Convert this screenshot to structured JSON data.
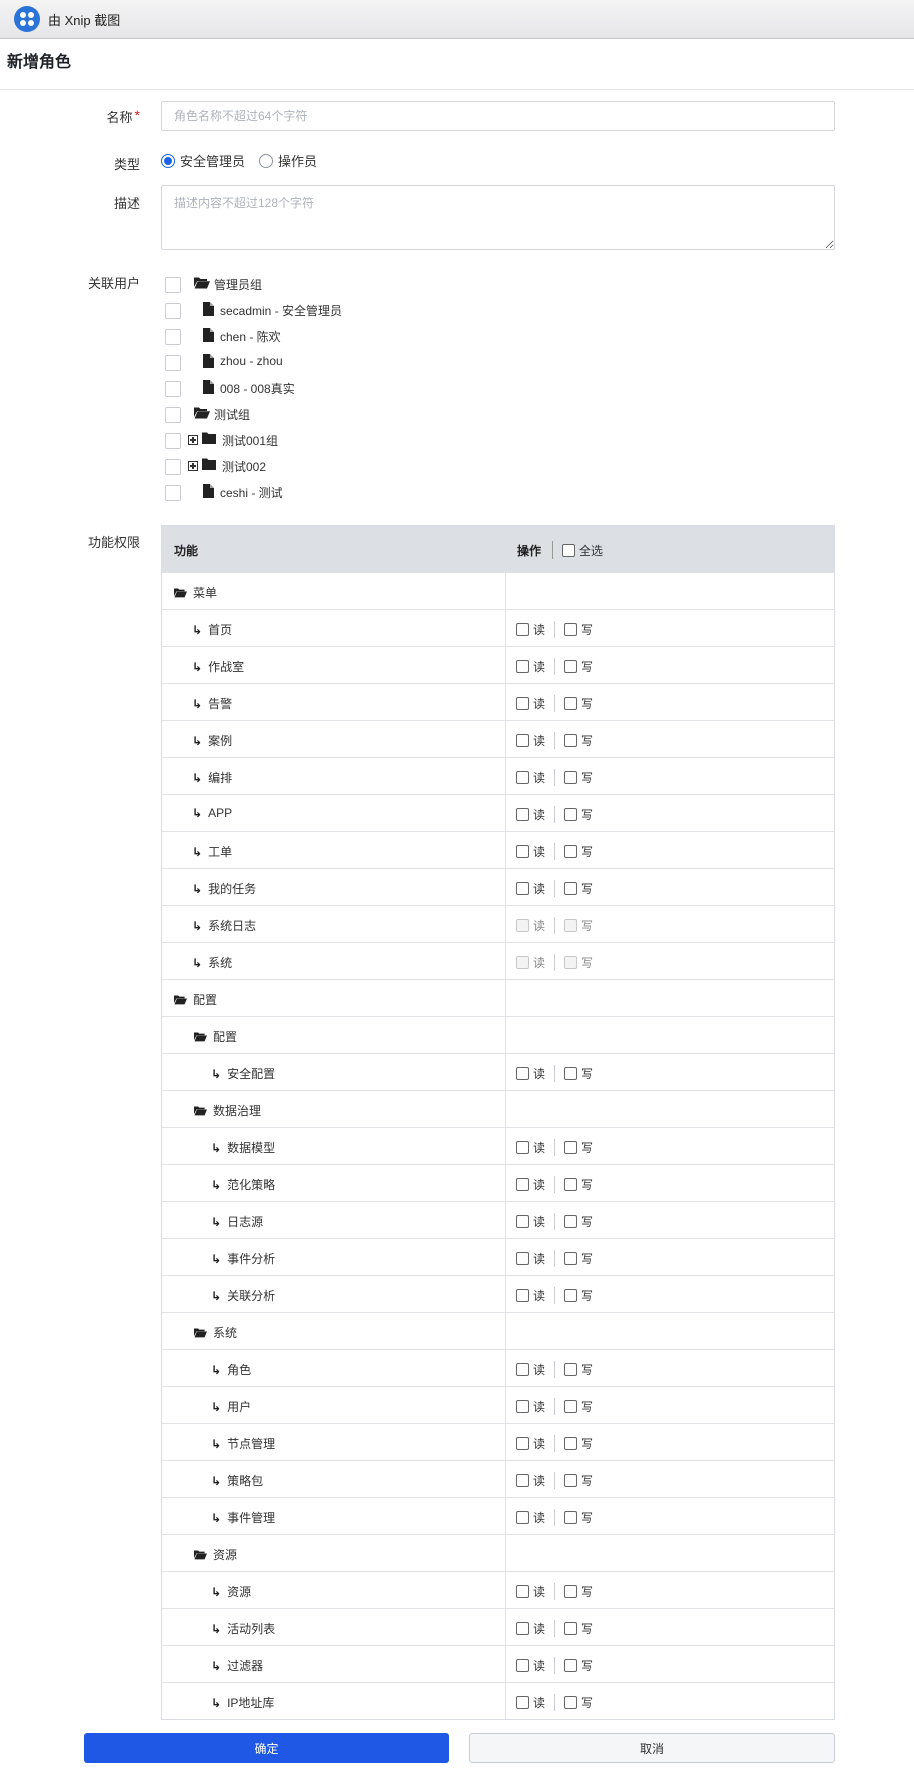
{
  "window": {
    "title": "由 Xnip 截图"
  },
  "page": {
    "title": "新增角色"
  },
  "form": {
    "name_label": "名称",
    "required_mark": "*",
    "name_placeholder": "角色名称不超过64个字符",
    "type_label": "类型",
    "type_options": [
      "安全管理员",
      "操作员"
    ],
    "type_selected": "安全管理员",
    "desc_label": "描述",
    "desc_placeholder": "描述内容不超过128个字符",
    "users_label": "关联用户",
    "perm_label": "功能权限"
  },
  "user_tree": [
    {
      "text": "管理员组",
      "icon": "folder-open-icon"
    },
    {
      "text": "secadmin - 安全管理员",
      "icon": "file-icon"
    },
    {
      "text": "chen - 陈欢",
      "icon": "file-icon"
    },
    {
      "text": "zhou - zhou",
      "icon": "file-icon"
    },
    {
      "text": "008 - 008真实",
      "icon": "file-icon"
    },
    {
      "text": "测试组",
      "icon": "folder-open-icon"
    },
    {
      "text": "测试001组",
      "icon": "folder-closed-icon",
      "expander": true
    },
    {
      "text": "测试002",
      "icon": "folder-closed-icon",
      "expander": true
    },
    {
      "text": "ceshi - 测试",
      "icon": "file-icon"
    }
  ],
  "perm_table": {
    "col_function": "功能",
    "col_operation": "操作",
    "select_all": "全选",
    "read_label": "读",
    "write_label": "写",
    "rows": [
      {
        "name": "菜单",
        "kind": "group",
        "level": 0
      },
      {
        "name": "首页",
        "kind": "item",
        "level": 1
      },
      {
        "name": "作战室",
        "kind": "item",
        "level": 1
      },
      {
        "name": "告警",
        "kind": "item",
        "level": 1
      },
      {
        "name": "案例",
        "kind": "item",
        "level": 1
      },
      {
        "name": "编排",
        "kind": "item",
        "level": 1
      },
      {
        "name": "APP",
        "kind": "item",
        "level": 1
      },
      {
        "name": "工单",
        "kind": "item",
        "level": 1
      },
      {
        "name": "我的任务",
        "kind": "item",
        "level": 1
      },
      {
        "name": "系统日志",
        "kind": "item",
        "level": 1,
        "disabled": true
      },
      {
        "name": "系统",
        "kind": "item",
        "level": 1,
        "disabled": true
      },
      {
        "name": "配置",
        "kind": "group",
        "level": 0
      },
      {
        "name": "配置",
        "kind": "group",
        "level": 1
      },
      {
        "name": "安全配置",
        "kind": "item",
        "level": 2
      },
      {
        "name": "数据治理",
        "kind": "group",
        "level": 1
      },
      {
        "name": "数据模型",
        "kind": "item",
        "level": 2
      },
      {
        "name": "范化策略",
        "kind": "item",
        "level": 2
      },
      {
        "name": "日志源",
        "kind": "item",
        "level": 2
      },
      {
        "name": "事件分析",
        "kind": "item",
        "level": 2
      },
      {
        "name": "关联分析",
        "kind": "item",
        "level": 2
      },
      {
        "name": "系统",
        "kind": "group",
        "level": 1
      },
      {
        "name": "角色",
        "kind": "item",
        "level": 2
      },
      {
        "name": "用户",
        "kind": "item",
        "level": 2
      },
      {
        "name": "节点管理",
        "kind": "item",
        "level": 2
      },
      {
        "name": "策略包",
        "kind": "item",
        "level": 2
      },
      {
        "name": "事件管理",
        "kind": "item",
        "level": 2
      },
      {
        "name": "资源",
        "kind": "group",
        "level": 1
      },
      {
        "name": "资源",
        "kind": "item",
        "level": 2
      },
      {
        "name": "活动列表",
        "kind": "item",
        "level": 2
      },
      {
        "name": "过滤器",
        "kind": "item",
        "level": 2
      },
      {
        "name": "IP地址库",
        "kind": "item",
        "level": 2
      }
    ]
  },
  "buttons": {
    "confirm": "确定",
    "cancel": "取消"
  },
  "colors": {
    "primary": "#1f58e4",
    "required": "#e02020",
    "table_header": "#dcdfe4"
  }
}
